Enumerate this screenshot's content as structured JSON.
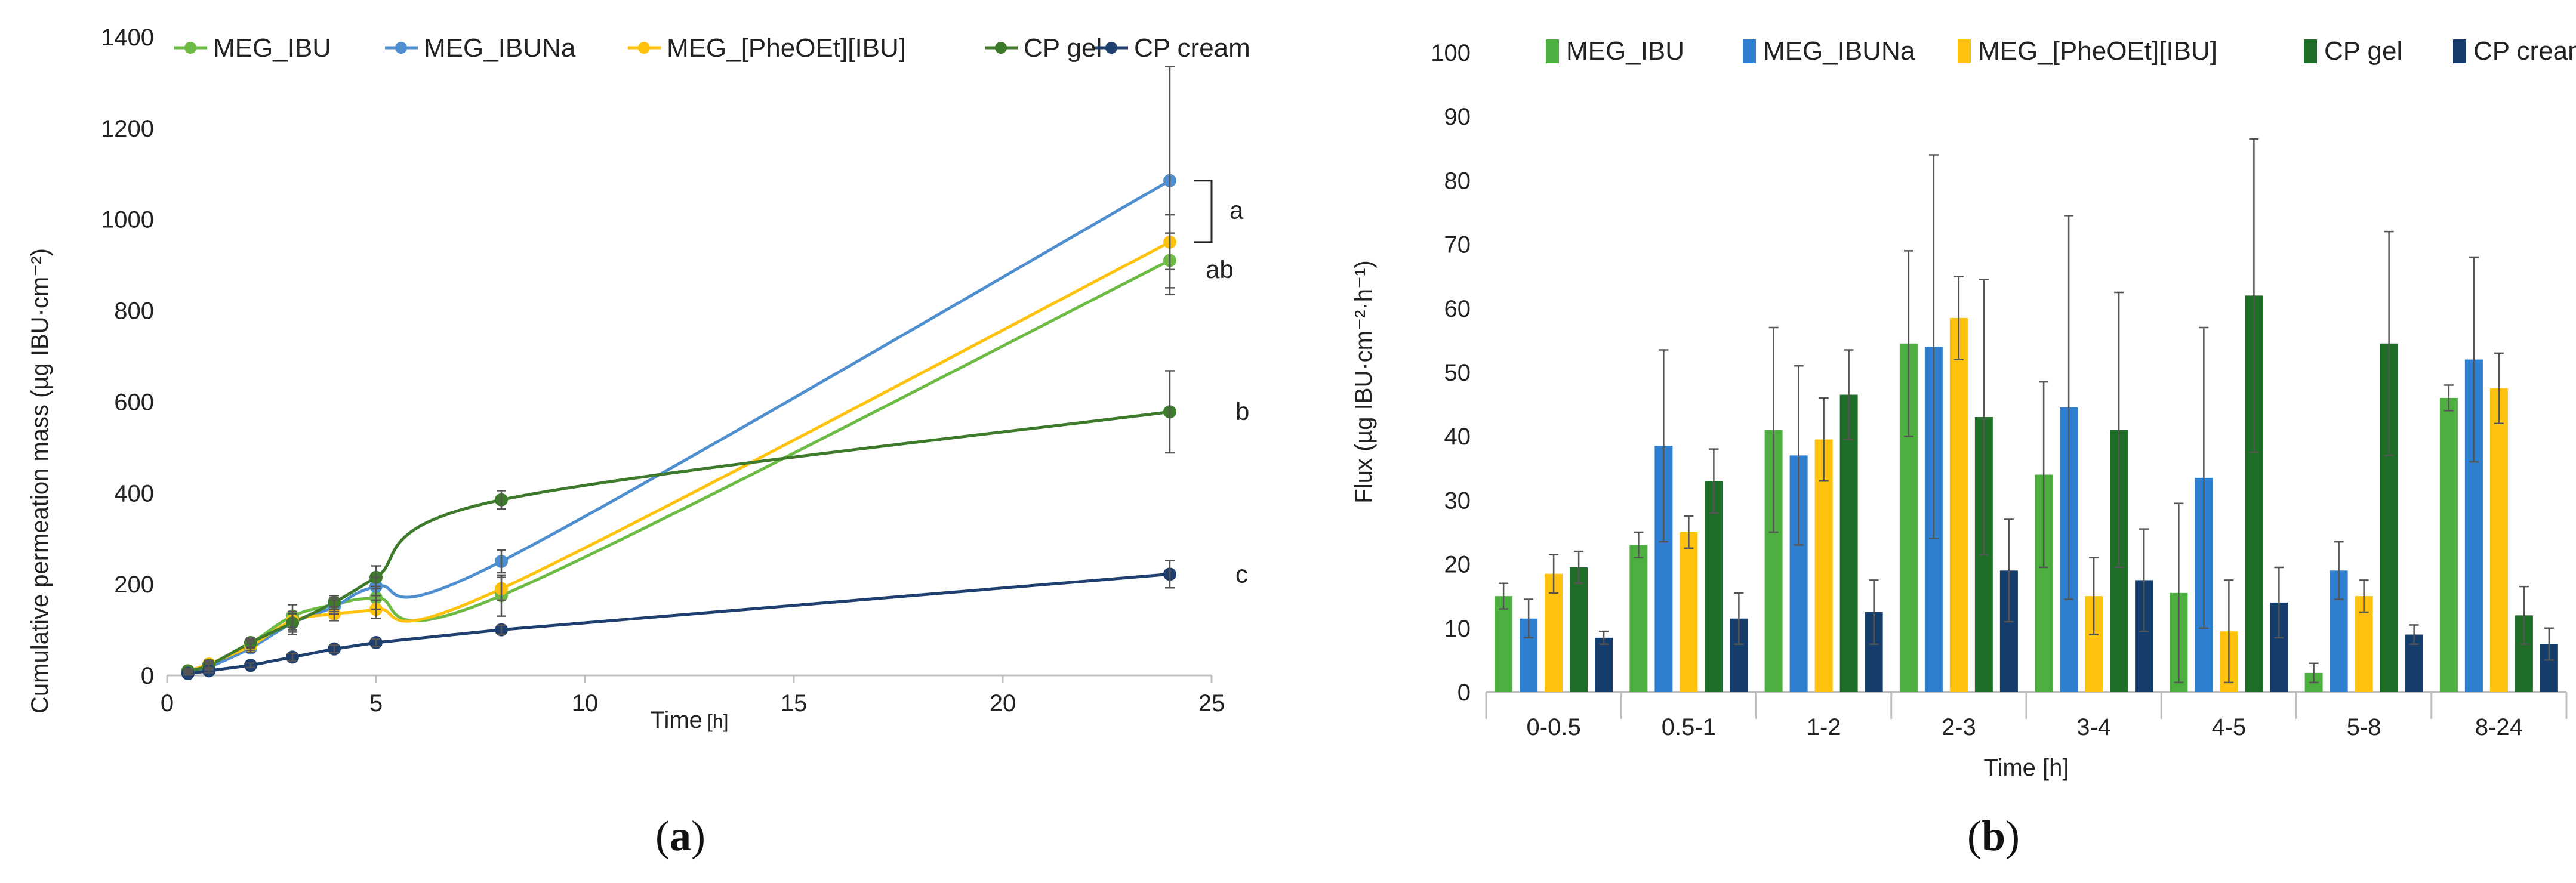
{
  "figure": {
    "panel_a_label": "a",
    "panel_b_label": "b"
  },
  "chart_data": [
    {
      "type": "line",
      "panel": "a",
      "xlabel": "Time",
      "xunit": "[h]",
      "ylabel": "Cumulative permeation mass (µg IBU·cm⁻²)",
      "xlim": [
        0,
        25
      ],
      "ylim": [
        0,
        1400
      ],
      "xticks": [
        0,
        5,
        10,
        15,
        20,
        25
      ],
      "yticks": [
        0,
        200,
        400,
        600,
        800,
        1000,
        1200,
        1400
      ],
      "legend_position": "top",
      "series": [
        {
          "name": "MEG_IBU",
          "color": "#6dbb45",
          "smooth": true,
          "x": [
            0.5,
            1,
            2,
            3,
            4,
            5,
            8,
            24
          ],
          "y": [
            8,
            20,
            70,
            130,
            155,
            170,
            175,
            910
          ],
          "err": [
            4,
            8,
            10,
            25,
            15,
            25,
            45,
            60
          ]
        },
        {
          "name": "MEG_IBUNa",
          "color": "#4f8fcf",
          "smooth": true,
          "x": [
            0.5,
            1,
            2,
            3,
            4,
            5,
            8,
            24
          ],
          "y": [
            6,
            18,
            60,
            115,
            150,
            195,
            250,
            1085
          ],
          "err": [
            4,
            6,
            10,
            20,
            15,
            20,
            25,
            250
          ]
        },
        {
          "name": "MEG_[PheOEt][IBU]",
          "color": "#ffc20e",
          "smooth": true,
          "x": [
            0.5,
            1,
            2,
            3,
            4,
            5,
            8,
            24
          ],
          "y": [
            10,
            25,
            65,
            120,
            135,
            145,
            190,
            950
          ],
          "err": [
            4,
            8,
            10,
            20,
            15,
            20,
            25,
            60
          ]
        },
        {
          "name": "CP gel",
          "color": "#3d7a2b",
          "smooth": true,
          "x": [
            0.5,
            1,
            2,
            3,
            4,
            5,
            8,
            24
          ],
          "y": [
            10,
            22,
            72,
            115,
            160,
            215,
            385,
            578
          ],
          "err": [
            4,
            8,
            10,
            25,
            15,
            25,
            20,
            90
          ]
        },
        {
          "name": "CP cream",
          "color": "#1f3f6e",
          "smooth": false,
          "x": [
            0.5,
            1,
            2,
            3,
            4,
            5,
            8,
            24
          ],
          "y": [
            4,
            10,
            22,
            40,
            58,
            72,
            100,
            222
          ],
          "err": [
            3,
            4,
            5,
            8,
            8,
            8,
            10,
            30
          ]
        }
      ],
      "annotations": [
        {
          "text": "a",
          "series": "MEG_IBUNa"
        },
        {
          "text": "ab",
          "series": "MEG_[PheOEt][IBU]"
        },
        {
          "text": "b",
          "series": "CP gel"
        },
        {
          "text": "c",
          "series": "CP cream"
        }
      ]
    },
    {
      "type": "bar",
      "panel": "b",
      "xlabel": "Time [h]",
      "ylabel": "Flux (µg IBU·cm⁻²·h⁻¹)",
      "ylim": [
        0,
        100
      ],
      "yticks": [
        0,
        10,
        20,
        30,
        40,
        50,
        60,
        70,
        80,
        90,
        100
      ],
      "legend_position": "top",
      "categories": [
        "0-0.5",
        "0.5-1",
        "1-2",
        "2-3",
        "3-4",
        "4-5",
        "5-8",
        "8-24"
      ],
      "series": [
        {
          "name": "MEG_IBU",
          "color": "#4daf3f",
          "values": [
            15,
            23,
            41,
            54.5,
            34,
            15.5,
            3,
            46
          ],
          "err": [
            2,
            2,
            16,
            14.5,
            14.5,
            14,
            1.5,
            2
          ]
        },
        {
          "name": "MEG_IBUNa",
          "color": "#2f7fd0",
          "values": [
            11.5,
            38.5,
            37,
            54,
            44.5,
            33.5,
            19,
            52
          ],
          "err": [
            3,
            15,
            14,
            30,
            30,
            23.5,
            4.5,
            16
          ]
        },
        {
          "name": "MEG_[PheOEt][IBU]",
          "color": "#ffc20e",
          "values": [
            18.5,
            25,
            39.5,
            58.5,
            15,
            9.5,
            15,
            47.5
          ],
          "err": [
            3,
            2.5,
            6.5,
            6.5,
            6,
            8,
            2.5,
            5.5
          ]
        },
        {
          "name": "CP gel",
          "color": "#1e6e28",
          "values": [
            19.5,
            33,
            46.5,
            43,
            41,
            62,
            54.5,
            12
          ],
          "err": [
            2.5,
            5,
            7,
            21.5,
            21.5,
            24.5,
            17.5,
            4.5
          ]
        },
        {
          "name": "CP cream",
          "color": "#153d6b",
          "values": [
            8.5,
            11.5,
            12.5,
            19,
            17.5,
            14,
            9,
            7.5
          ],
          "err": [
            1,
            4,
            5,
            8,
            8,
            5.5,
            1.5,
            2.5
          ]
        }
      ]
    }
  ]
}
